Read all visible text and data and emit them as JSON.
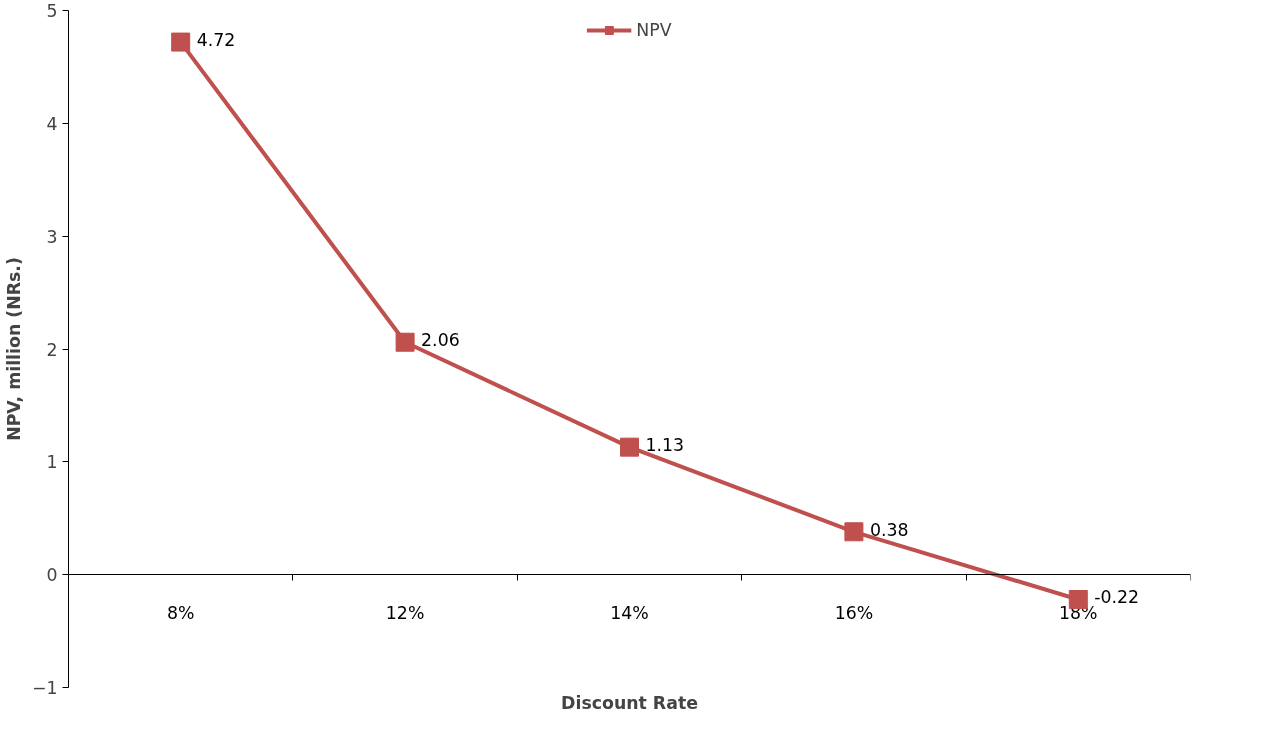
{
  "chart_data": {
    "type": "line",
    "xlabel": "Discount Rate",
    "ylabel": "NPV, million (NRs.)",
    "categories": [
      "8%",
      "12%",
      "14%",
      "16%",
      "18%"
    ],
    "series": [
      {
        "name": "NPV",
        "color": "#c0504d",
        "values": [
          4.72,
          2.06,
          1.13,
          0.38,
          -0.22
        ]
      }
    ],
    "ylim": [
      -1,
      5
    ],
    "yticks": [
      -1,
      0,
      1,
      2,
      3,
      4,
      5
    ],
    "grid": false,
    "legend": "top",
    "marker": "square",
    "line_style": "solid",
    "data_labels": true
  }
}
